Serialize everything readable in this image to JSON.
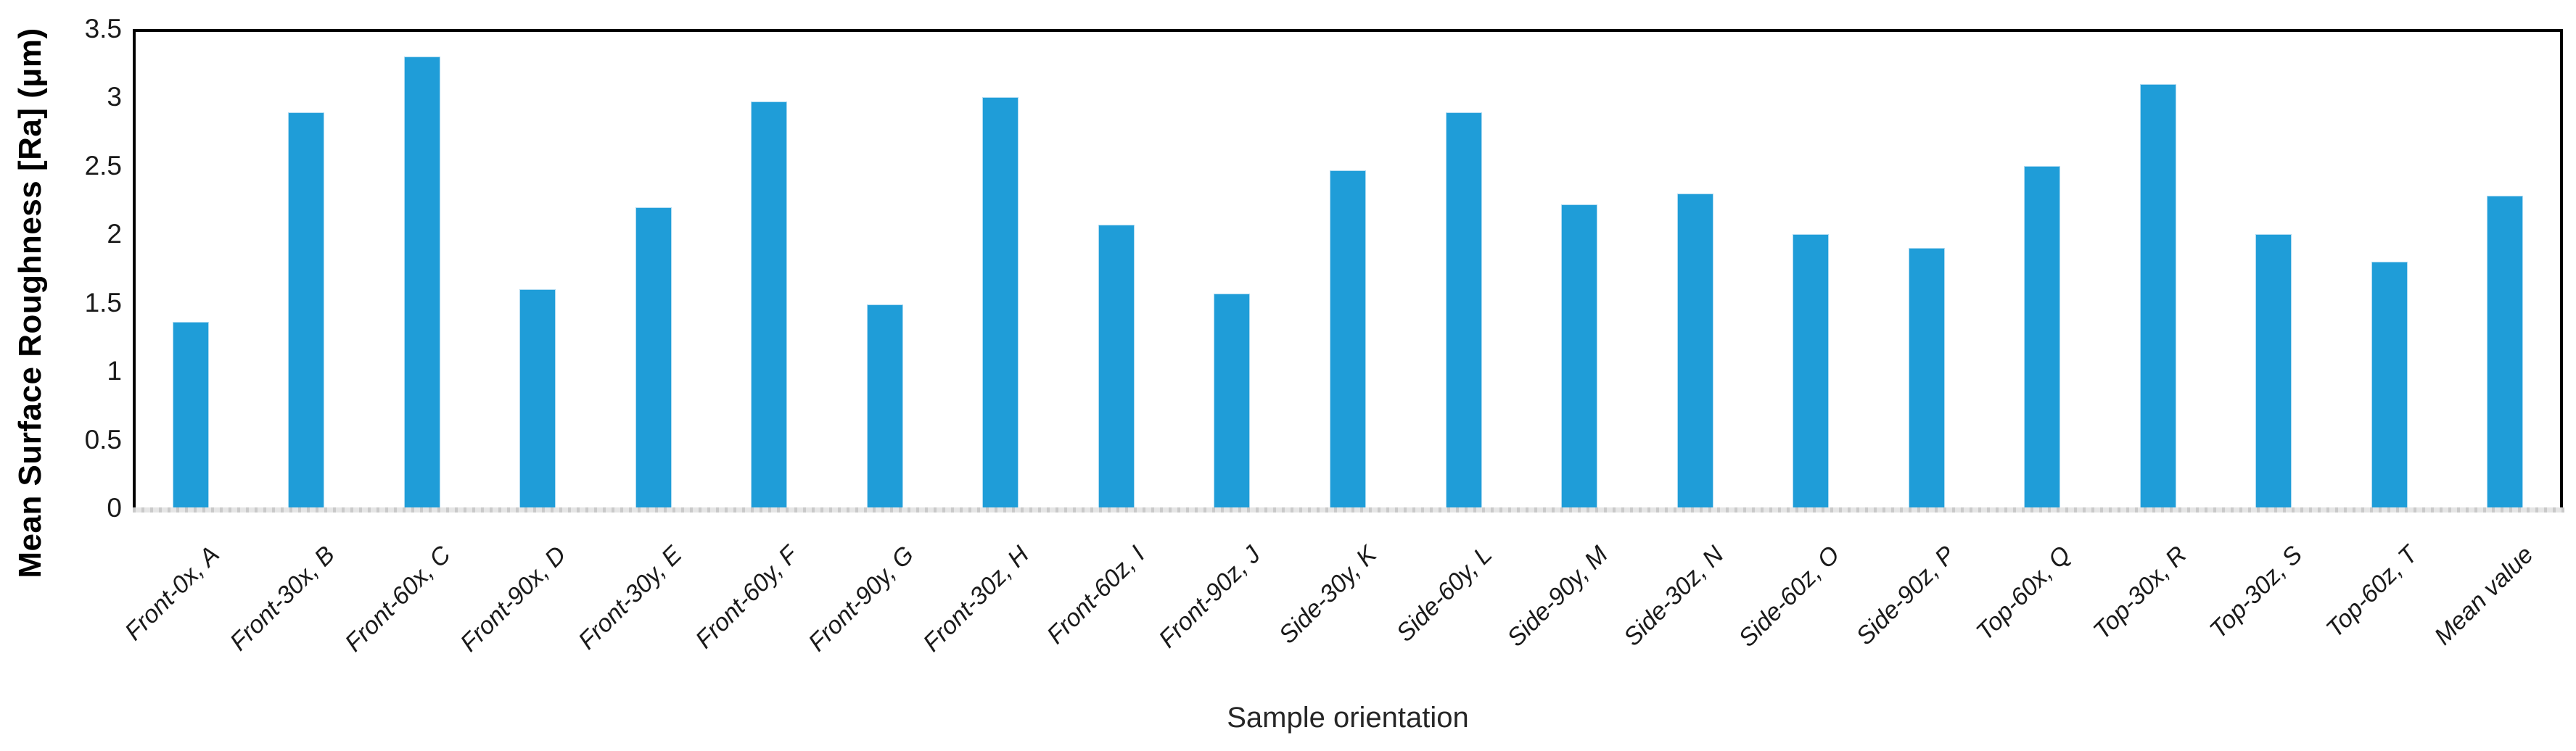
{
  "chart_data": {
    "type": "bar",
    "title": "",
    "xlabel": "Sample orientation",
    "ylabel": "Mean Surface Roughness [Ra] (μm)",
    "categories": [
      "Front-0x, A",
      "Front-30x, B",
      "Front-60x, C",
      "Front-90x, D",
      "Front-30y, E",
      "Front-60y, F",
      "Front-90y, G",
      "Front-30z, H",
      "Front-60z, I",
      "Front-90z, J",
      "Side-30y, K",
      "Side-60y, L",
      "Side-90y, M",
      "Side-30z, N",
      "Side-60z, O",
      "Side-90z, P",
      "Top-60x, Q",
      "Top-30x, R",
      "Top-30z, S",
      "Top-60z, T",
      "Mean value"
    ],
    "values": [
      1.36,
      2.89,
      3.3,
      1.6,
      2.2,
      2.97,
      1.49,
      3.0,
      2.07,
      1.57,
      2.47,
      2.89,
      2.22,
      2.3,
      2.0,
      1.9,
      2.5,
      3.1,
      2.0,
      1.8,
      2.28
    ],
    "ylim": [
      0,
      3.5
    ],
    "ytick_labels": [
      "0",
      "0.5",
      "1",
      "1.5",
      "2",
      "2.5",
      "3",
      "3.5"
    ],
    "grid": false,
    "legend_position": "none",
    "bar_color": "#1f9dd8",
    "axis_frame_color": "#000000",
    "zero_line_color": "#d9d9d9",
    "label_rotation_deg": 45
  }
}
